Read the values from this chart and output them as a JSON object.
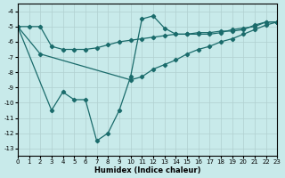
{
  "background_color": "#c8eaea",
  "grid_color": "#b0d0d0",
  "line_color": "#1a6b6b",
  "xlim": [
    0,
    23
  ],
  "ylim": [
    -13.5,
    -3.5
  ],
  "xlabel": "Humidex (Indice chaleur)",
  "xticks": [
    0,
    1,
    2,
    3,
    4,
    5,
    6,
    7,
    8,
    9,
    10,
    11,
    12,
    13,
    14,
    15,
    16,
    17,
    18,
    19,
    20,
    21,
    22,
    23
  ],
  "yticks": [
    -13,
    -12,
    -11,
    -10,
    -9,
    -8,
    -7,
    -6,
    -5,
    -4
  ],
  "lineA": {
    "x": [
      0,
      2,
      10,
      11,
      12,
      13,
      14,
      15,
      16,
      17,
      18,
      19,
      20,
      21,
      22,
      23
    ],
    "y": [
      -5,
      -6.8,
      -8.5,
      -8.3,
      -7.8,
      -7.5,
      -7.2,
      -6.8,
      -6.5,
      -6.3,
      -6.0,
      -5.8,
      -5.5,
      -5.2,
      -4.9,
      -4.7
    ]
  },
  "lineB": {
    "x": [
      0,
      3,
      4,
      5,
      6,
      7,
      8,
      9,
      10,
      11,
      12,
      13,
      14,
      15,
      16,
      17,
      18,
      19,
      20,
      21,
      22,
      23
    ],
    "y": [
      -5,
      -10.5,
      -9.3,
      -9.8,
      -9.8,
      -12.5,
      -12.0,
      -10.5,
      -8.3,
      -4.5,
      -4.3,
      -5.1,
      -5.5,
      -5.5,
      -5.4,
      -5.4,
      -5.3,
      -5.3,
      -5.2,
      -4.9,
      -4.7,
      -4.7
    ]
  },
  "lineC": {
    "x": [
      0,
      1,
      2,
      3,
      4,
      5,
      6,
      7,
      8,
      9,
      10,
      11,
      12,
      13,
      14,
      15,
      16,
      17,
      18,
      19,
      20,
      21,
      22,
      23
    ],
    "y": [
      -5,
      -5,
      -5,
      -6.3,
      -6.5,
      -6.5,
      -6.5,
      -6.4,
      -6.2,
      -6.0,
      -5.9,
      -5.8,
      -5.7,
      -5.6,
      -5.5,
      -5.5,
      -5.5,
      -5.5,
      -5.4,
      -5.2,
      -5.1,
      -5.0,
      -4.7,
      -4.7
    ]
  }
}
